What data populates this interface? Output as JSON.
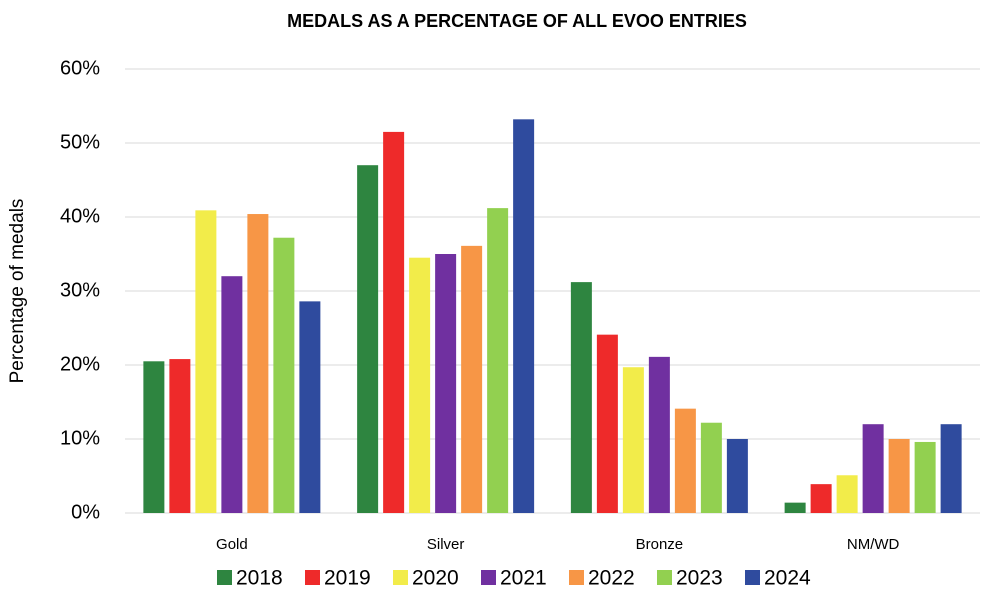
{
  "chart_data": {
    "type": "bar",
    "title": "MEDALS AS A PERCENTAGE OF ALL EVOO ENTRIES",
    "y_label": "Percentage of medals",
    "categories": [
      "Gold",
      "Silver",
      "Bronze",
      "NM/WD"
    ],
    "series": [
      {
        "name": "2018",
        "color": "#2e8540",
        "values": [
          20.5,
          47.0,
          31.2,
          1.4
        ]
      },
      {
        "name": "2019",
        "color": "#ee2a2a",
        "values": [
          20.8,
          51.5,
          24.1,
          3.9
        ]
      },
      {
        "name": "2020",
        "color": "#f2ec4a",
        "values": [
          40.9,
          34.5,
          19.7,
          5.1
        ]
      },
      {
        "name": "2021",
        "color": "#7030a0",
        "values": [
          32.0,
          35.0,
          21.1,
          12.0
        ]
      },
      {
        "name": "2022",
        "color": "#f79646",
        "values": [
          40.4,
          36.1,
          14.1,
          10.0
        ]
      },
      {
        "name": "2023",
        "color": "#92d050",
        "values": [
          37.2,
          41.2,
          12.2,
          9.6
        ]
      },
      {
        "name": "2024",
        "color": "#2f4b9e",
        "values": [
          28.6,
          53.2,
          10.0,
          12.0
        ]
      }
    ],
    "ylim": [
      0,
      60
    ],
    "yticks": [
      {
        "value": 0,
        "label": "0%"
      },
      {
        "value": 10,
        "label": "10%"
      },
      {
        "value": 20,
        "label": "20%"
      },
      {
        "value": 30,
        "label": "30%"
      },
      {
        "value": 40,
        "label": "40%"
      },
      {
        "value": 50,
        "label": "50%"
      },
      {
        "value": 60,
        "label": "60%"
      }
    ],
    "grid": true,
    "legend": "bottom"
  }
}
